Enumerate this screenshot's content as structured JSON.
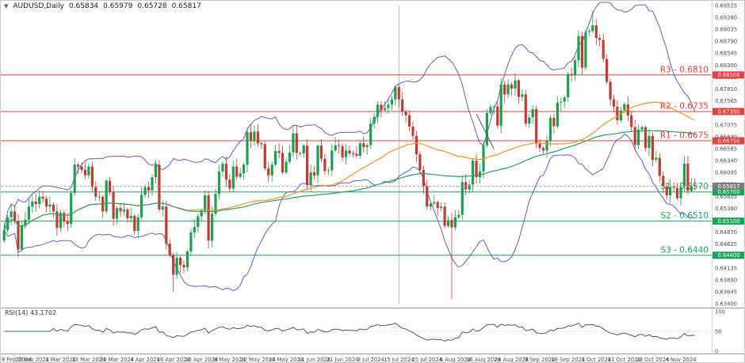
{
  "header": {
    "symbol": "AUDUSD,Daily",
    "open": "0.65834",
    "high": "0.65979",
    "low": "0.65728",
    "close": "0.65817"
  },
  "colors": {
    "up": "#1e9e4f",
    "down": "#c23b33",
    "bollinger": "#5f5fd3",
    "ma_fast": "#ff9022",
    "ma_slow": "#27a065",
    "resistance": "#e83f3f",
    "support": "#18a55a",
    "rsi": "#3f5c7a",
    "axis_text": "#4d4d4d",
    "separator": "#9e9e9e",
    "tag_current": "#7d7d7d",
    "grid50": "#cccccc"
  },
  "chart_data": {
    "type": "candlestick",
    "symbol": "AUDUSD",
    "timeframe": "Daily",
    "ylim": [
      0.6339,
      0.69525
    ],
    "y_ticks": [
      "0.69525",
      "0.69280",
      "0.69035",
      "0.68790",
      "0.68545",
      "0.68300",
      "0.68055",
      "0.67810",
      "0.67565",
      "0.67320",
      "0.67075",
      "0.66830",
      "0.66585",
      "0.66340",
      "0.66095",
      "0.65850",
      "0.65605",
      "0.65360",
      "0.65115",
      "0.64870",
      "0.64625",
      "0.64380",
      "0.64135",
      "0.63890",
      "0.63645",
      "0.63400"
    ],
    "x_tick_labels": [
      {
        "label": "8 Feb 2024",
        "index": 0
      },
      {
        "label": "20 Feb 2024",
        "index": 8
      },
      {
        "label": "1 Mar 2024",
        "index": 16
      },
      {
        "label": "13 Mar 2024",
        "index": 24
      },
      {
        "label": "25 Mar 2024",
        "index": 32
      },
      {
        "label": "4 Apr 2024",
        "index": 40
      },
      {
        "label": "16 Apr 2024",
        "index": 48
      },
      {
        "label": "26 Apr 2024",
        "index": 56
      },
      {
        "label": "8 May 2024",
        "index": 64
      },
      {
        "label": "20 May 2024",
        "index": 72
      },
      {
        "label": "30 May 2024",
        "index": 80
      },
      {
        "label": "11 Jun 2024",
        "index": 88
      },
      {
        "label": "21 Jun 2024",
        "index": 96
      },
      {
        "label": "3 Jul 2024",
        "index": 104
      },
      {
        "label": "15 Jul 2024",
        "index": 112
      },
      {
        "label": "25 Jul 2024",
        "index": 120
      },
      {
        "label": "6 Aug 2024",
        "index": 128
      },
      {
        "label": "16 Aug 2024",
        "index": 136
      },
      {
        "label": "28 Aug 2024",
        "index": 144
      },
      {
        "label": "9 Sep 2024",
        "index": 152
      },
      {
        "label": "19 Sep 2024",
        "index": 160
      },
      {
        "label": "1 Oct 2024",
        "index": 168
      },
      {
        "label": "11 Oct 2024",
        "index": 176
      },
      {
        "label": "23 Oct 2024",
        "index": 184
      },
      {
        "label": "4 Nov 2024",
        "index": 192
      }
    ],
    "first_open": 0.647,
    "closes": [
      0.6492,
      0.6518,
      0.653,
      0.651,
      0.6452,
      0.65,
      0.6513,
      0.654,
      0.655,
      0.6545,
      0.656,
      0.6556,
      0.654,
      0.6544,
      0.653,
      0.6496,
      0.6527,
      0.651,
      0.6504,
      0.6568,
      0.6626,
      0.6622,
      0.6615,
      0.6604,
      0.6622,
      0.658,
      0.656,
      0.656,
      0.653,
      0.6593,
      0.657,
      0.6515,
      0.6537,
      0.653,
      0.6534,
      0.6516,
      0.6521,
      0.649,
      0.6518,
      0.6564,
      0.658,
      0.6573,
      0.66,
      0.6626,
      0.6534,
      0.654,
      0.6464,
      0.644,
      0.64,
      0.6435,
      0.642,
      0.6415,
      0.6448,
      0.6487,
      0.6498,
      0.652,
      0.6532,
      0.6563,
      0.647,
      0.6525,
      0.6566,
      0.6612,
      0.6628,
      0.6595,
      0.6577,
      0.6622,
      0.6601,
      0.6608,
      0.6626,
      0.6693,
      0.6675,
      0.6694,
      0.667,
      0.6668,
      0.6618,
      0.6604,
      0.6626,
      0.6654,
      0.665,
      0.661,
      0.6632,
      0.6651,
      0.669,
      0.665,
      0.6649,
      0.6665,
      0.6585,
      0.661,
      0.6604,
      0.6665,
      0.6638,
      0.6613,
      0.6614,
      0.6655,
      0.6666,
      0.6664,
      0.6641,
      0.6655,
      0.6649,
      0.6648,
      0.6644,
      0.667,
      0.6662,
      0.6666,
      0.671,
      0.6724,
      0.6749,
      0.6738,
      0.6742,
      0.6749,
      0.676,
      0.6785,
      0.676,
      0.6735,
      0.6727,
      0.6704,
      0.6685,
      0.6647,
      0.6615,
      0.6582,
      0.654,
      0.6546,
      0.6549,
      0.6537,
      0.654,
      0.65,
      0.6512,
      0.6497,
      0.6518,
      0.6523,
      0.659,
      0.6575,
      0.6585,
      0.6634,
      0.66,
      0.6612,
      0.6666,
      0.6732,
      0.6744,
      0.6745,
      0.6706,
      0.679,
      0.677,
      0.679,
      0.6782,
      0.6799,
      0.6765,
      0.677,
      0.671,
      0.6723,
      0.674,
      0.667,
      0.666,
      0.6655,
      0.6674,
      0.6722,
      0.6705,
      0.6753,
      0.6755,
      0.6764,
      0.6812,
      0.6809,
      0.684,
      0.689,
      0.6825,
      0.6898,
      0.69,
      0.6912,
      0.6886,
      0.6882,
      0.6843,
      0.6796,
      0.676,
      0.6745,
      0.6717,
      0.6737,
      0.675,
      0.6727,
      0.6703,
      0.6666,
      0.6698,
      0.6703,
      0.666,
      0.6685,
      0.6636,
      0.664,
      0.6603,
      0.6581,
      0.6563,
      0.658,
      0.6578,
      0.6557,
      0.658,
      0.6628,
      0.6572,
      0.6583,
      0.65817
    ],
    "overrides": {
      "48": {
        "low": 0.6365
      },
      "127": {
        "low": 0.635
      },
      "167": {
        "high": 0.6942
      },
      "193": {
        "high": 0.6644
      },
      "196": {
        "open": 0.65834,
        "high": 0.65979,
        "low": 0.65728,
        "close": 0.65817
      }
    },
    "levels": [
      {
        "id": "R3",
        "label": "R3 - 0.6810",
        "price": 0.681,
        "tag": "0.68100",
        "type": "resistance"
      },
      {
        "id": "R2",
        "label": "R2 - 0.6735",
        "price": 0.6735,
        "tag": "0.67350",
        "type": "resistance"
      },
      {
        "id": "R1",
        "label": "R1 - 0.6675",
        "price": 0.6675,
        "tag": "0.66750",
        "type": "resistance"
      },
      {
        "id": "S1",
        "label": "S1 - 0.6570",
        "price": 0.657,
        "tag": "0.65700",
        "type": "support"
      },
      {
        "id": "S2",
        "label": "S2 - 0.6510",
        "price": 0.651,
        "tag": "0.65100",
        "type": "support"
      },
      {
        "id": "S3",
        "label": "S3 - 0.6440",
        "price": 0.644,
        "tag": "0.64400",
        "type": "support"
      }
    ],
    "current_price": {
      "value": 0.65817,
      "tag": "0.65817"
    },
    "annotations": {
      "vline_index": 112,
      "trendline": {
        "i1": 134,
        "p1": 0.673,
        "i2": 139,
        "p2": 0.6658
      }
    },
    "indicators": {
      "bollinger": {
        "period": 20,
        "deviation": 2
      },
      "ma_fast": {
        "period": 50
      },
      "ma_slow": {
        "period": 100
      },
      "rsi": {
        "period": 14,
        "value": "43.1702",
        "label": "RSI(14) 43.1702",
        "levels": [
          "100",
          "50",
          "0"
        ]
      }
    }
  }
}
